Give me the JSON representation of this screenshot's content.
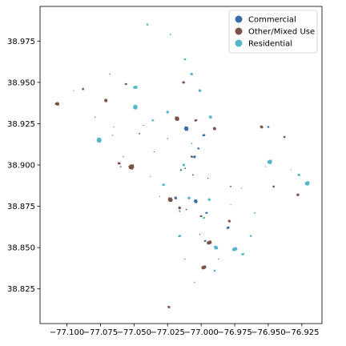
{
  "chart_data": {
    "type": "scatter",
    "title": "",
    "xlabel": "",
    "ylabel": "",
    "xlim": [
      -77.12,
      -76.91
    ],
    "ylim": [
      38.804,
      38.996
    ],
    "x_ticks": [
      -77.1,
      -77.075,
      -77.05,
      -77.025,
      -77.0,
      -76.975,
      -76.95,
      -76.925
    ],
    "x_tick_labels": [
      "−77.100",
      "−77.075",
      "−77.050",
      "−77.025",
      "−77.000",
      "−76.975",
      "−76.950",
      "−76.925"
    ],
    "y_ticks": [
      38.825,
      38.85,
      38.875,
      38.9,
      38.925,
      38.95,
      38.975
    ],
    "y_tick_labels": [
      "38.825",
      "38.850",
      "38.875",
      "38.900",
      "38.925",
      "38.950",
      "38.975"
    ],
    "grid": false,
    "legend_position": "top-right",
    "series": [
      {
        "name": "Commercial",
        "color": "#3a6ea5",
        "points": [
          [
            -77.011,
            38.922,
            0.0025
          ],
          [
            -76.998,
            38.918,
            0.0015
          ],
          [
            -77.002,
            38.91,
            0.0012
          ],
          [
            -77.005,
            38.905,
            0.0015
          ],
          [
            -77.015,
            38.897,
            0.001
          ],
          [
            -77.006,
            38.894,
            0.0008
          ],
          [
            -77.019,
            38.88,
            0.0015
          ],
          [
            -77.004,
            38.878,
            0.002
          ],
          [
            -76.996,
            38.871,
            0.0012
          ],
          [
            -77.016,
            38.872,
            0.0008
          ],
          [
            -76.98,
            38.862,
            0.0015
          ],
          [
            -76.997,
            38.854,
            0.0012
          ],
          [
            -76.95,
            38.923,
            0.0012
          ],
          [
            -77.046,
            38.919,
            0.0008
          ],
          [
            -77.06,
            38.899,
            0.0008
          ],
          [
            -77.035,
            38.908,
            0.0006
          ],
          [
            -77.068,
            38.955,
            0.0006
          ],
          [
            -77.043,
            38.924,
            0.0006
          ],
          [
            -77.025,
            38.916,
            0.0006
          ],
          [
            -76.995,
            38.892,
            0.0006
          ],
          [
            -77.001,
            38.858,
            0.0006
          ],
          [
            -76.987,
            38.843,
            0.0006
          ],
          [
            -77.031,
            38.881,
            0.0006
          ],
          [
            -77.012,
            38.898,
            0.0008
          ]
        ]
      },
      {
        "name": "Other/Mixed Use",
        "color": "#7b5349",
        "points": [
          [
            -77.107,
            38.937,
            0.0022
          ],
          [
            -77.071,
            38.939,
            0.0018
          ],
          [
            -77.088,
            38.946,
            0.0012
          ],
          [
            -77.056,
            38.949,
            0.0012
          ],
          [
            -77.018,
            38.928,
            0.0025
          ],
          [
            -76.99,
            38.922,
            0.0018
          ],
          [
            -77.004,
            38.927,
            0.0015
          ],
          [
            -76.955,
            38.923,
            0.0018
          ],
          [
            -76.938,
            38.917,
            0.0012
          ],
          [
            -77.052,
            38.899,
            0.003
          ],
          [
            -77.061,
            38.901,
            0.0015
          ],
          [
            -77.023,
            38.879,
            0.0025
          ],
          [
            -77.016,
            38.874,
            0.0015
          ],
          [
            -77.0,
            38.869,
            0.0012
          ],
          [
            -76.979,
            38.866,
            0.0015
          ],
          [
            -76.994,
            38.853,
            0.0025
          ],
          [
            -76.998,
            38.838,
            0.0025
          ],
          [
            -77.024,
            38.814,
            0.0015
          ],
          [
            -76.928,
            38.882,
            0.0015
          ],
          [
            -76.946,
            38.887,
            0.0012
          ],
          [
            -77.013,
            38.95,
            0.0015
          ],
          [
            -77.007,
            38.905,
            0.0012
          ],
          [
            -76.978,
            38.887,
            0.0008
          ],
          [
            -77.011,
            38.873,
            0.0008
          ],
          [
            -77.079,
            38.929,
            0.0006
          ]
        ]
      },
      {
        "name": "Residential",
        "color": "#55b6c9",
        "points": [
          [
            -77.076,
            38.915,
            0.0028
          ],
          [
            -77.049,
            38.947,
            0.0022
          ],
          [
            -77.04,
            38.985,
            0.0012
          ],
          [
            -77.023,
            38.979,
            0.0008
          ],
          [
            -77.012,
            38.964,
            0.0012
          ],
          [
            -77.007,
            38.955,
            0.0015
          ],
          [
            -77.001,
            38.945,
            0.0015
          ],
          [
            -77.049,
            38.935,
            0.0025
          ],
          [
            -77.036,
            38.927,
            0.0012
          ],
          [
            -77.025,
            38.932,
            0.0015
          ],
          [
            -76.993,
            38.929,
            0.0018
          ],
          [
            -77.028,
            38.888,
            0.0015
          ],
          [
            -77.013,
            38.9,
            0.0015
          ],
          [
            -76.949,
            38.902,
            0.0025
          ],
          [
            -76.921,
            38.889,
            0.0025
          ],
          [
            -76.927,
            38.894,
            0.0015
          ],
          [
            -77.009,
            38.88,
            0.0015
          ],
          [
            -76.994,
            38.879,
            0.0015
          ],
          [
            -77.016,
            38.857,
            0.0015
          ],
          [
            -76.989,
            38.85,
            0.0022
          ],
          [
            -76.975,
            38.849,
            0.0025
          ],
          [
            -76.969,
            38.846,
            0.0015
          ],
          [
            -76.963,
            38.857,
            0.0012
          ],
          [
            -76.99,
            38.836,
            0.0012
          ],
          [
            -77.005,
            38.829,
            0.0008
          ],
          [
            -77.012,
            38.843,
            0.0008
          ],
          [
            -76.96,
            38.871,
            0.0008
          ],
          [
            -76.97,
            38.886,
            0.0006
          ],
          [
            -76.998,
            38.868,
            0.0012
          ],
          [
            -77.007,
            38.913,
            0.0008
          ],
          [
            -77.058,
            38.905,
            0.0008
          ],
          [
            -77.066,
            38.918,
            0.0008
          ],
          [
            -77.038,
            38.893,
            0.0006
          ],
          [
            -76.978,
            38.876,
            0.0006
          ],
          [
            -76.952,
            38.899,
            0.0006
          ],
          [
            -76.933,
            38.897,
            0.0006
          ],
          [
            -77.095,
            38.945,
            0.0006
          ],
          [
            -77.065,
            38.923,
            0.0006
          ]
        ]
      }
    ]
  }
}
